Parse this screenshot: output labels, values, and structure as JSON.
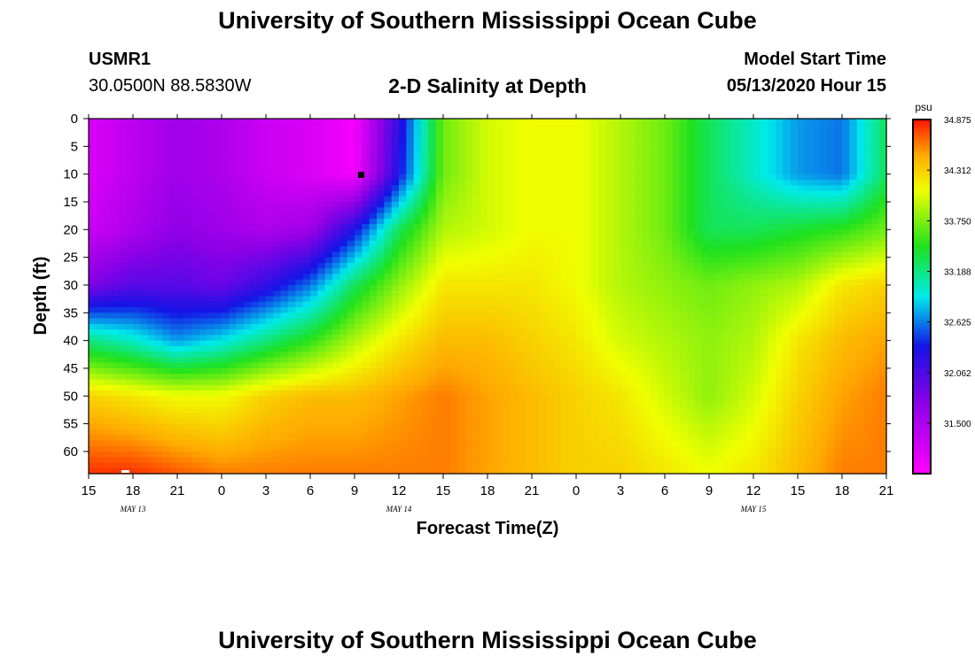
{
  "header": {
    "title": "University of Southern Mississippi Ocean Cube",
    "station_id": "USMR1",
    "station_coords": "30.0500N 88.5830W",
    "plot_title": "2-D Salinity at Depth",
    "model_start_label": "Model Start Time",
    "model_start_time": "05/13/2020 Hour 15"
  },
  "footer": {
    "title": "University of Southern Mississippi Ocean Cube"
  },
  "chart_data": {
    "type": "heatmap",
    "title": "2-D Salinity at Depth",
    "xlabel": "Forecast Time(Z)",
    "ylabel": "Depth (ft)",
    "x_tick_labels": [
      "15",
      "18",
      "21",
      "0",
      "3",
      "6",
      "9",
      "12",
      "15",
      "18",
      "21",
      "0",
      "3",
      "6",
      "9",
      "12",
      "15",
      "18",
      "21"
    ],
    "x_day_labels": [
      {
        "label": "MAY 13",
        "tick_index": 1
      },
      {
        "label": "MAY 14",
        "tick_index": 7
      },
      {
        "label": "MAY 15",
        "tick_index": 15
      }
    ],
    "xlim_hours": [
      0,
      54
    ],
    "y_ticks": [
      0,
      5,
      10,
      15,
      20,
      25,
      30,
      35,
      40,
      45,
      50,
      55,
      60
    ],
    "ylim": [
      0,
      64
    ],
    "y_inverted": true,
    "colorbar": {
      "unit": "psu",
      "range": [
        30.94,
        34.875
      ],
      "tick_values": [
        "34.875",
        "34.312",
        "33.750",
        "33.188",
        "32.625",
        "32.062",
        "31.500"
      ]
    },
    "grid_hours": [
      0,
      3,
      6,
      9,
      12,
      15,
      18,
      21,
      24,
      27,
      30,
      33,
      36,
      39,
      42,
      45,
      48,
      51,
      54
    ],
    "grid_depths": [
      0,
      10,
      20,
      30,
      40,
      50,
      64
    ],
    "salinity_psu": [
      [
        31.2,
        31.4,
        31.6,
        31.5,
        31.3,
        31.2,
        31.0,
        32.2,
        33.7,
        34.0,
        34.1,
        34.1,
        33.9,
        33.7,
        33.3,
        33.0,
        32.7,
        32.6,
        33.3
      ],
      [
        31.2,
        31.4,
        31.6,
        31.5,
        31.3,
        31.2,
        31.0,
        32.3,
        33.7,
        34.0,
        34.1,
        34.1,
        33.9,
        33.7,
        33.3,
        33.0,
        32.7,
        32.6,
        33.3
      ],
      [
        31.3,
        31.5,
        31.7,
        31.6,
        31.5,
        31.6,
        32.3,
        33.3,
        33.9,
        34.0,
        34.1,
        34.1,
        33.9,
        33.7,
        33.3,
        33.3,
        33.4,
        33.5,
        33.7
      ],
      [
        31.8,
        32.0,
        32.0,
        31.9,
        32.2,
        32.6,
        33.3,
        33.8,
        34.2,
        34.2,
        34.2,
        34.1,
        33.9,
        33.8,
        33.7,
        33.8,
        33.9,
        34.2,
        34.3
      ],
      [
        33.2,
        33.0,
        32.7,
        32.9,
        33.2,
        33.5,
        33.9,
        34.2,
        34.4,
        34.4,
        34.3,
        34.2,
        34.0,
        33.9,
        33.8,
        33.9,
        34.2,
        34.4,
        34.5
      ],
      [
        34.3,
        34.2,
        34.1,
        34.1,
        34.3,
        34.4,
        34.4,
        34.5,
        34.6,
        34.5,
        34.4,
        34.3,
        34.2,
        34.0,
        33.8,
        34.0,
        34.3,
        34.5,
        34.6
      ],
      [
        34.8,
        34.8,
        34.7,
        34.6,
        34.6,
        34.6,
        34.6,
        34.6,
        34.6,
        34.5,
        34.4,
        34.3,
        34.3,
        34.2,
        34.1,
        34.2,
        34.4,
        34.6,
        34.6
      ]
    ]
  }
}
